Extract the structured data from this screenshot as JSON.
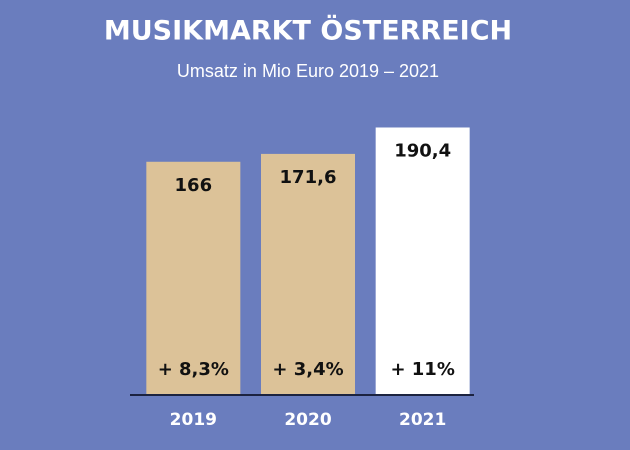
{
  "chart_data": {
    "type": "bar",
    "title": "MUSIKMARKT ÖSTERREICH",
    "subtitle": "Umsatz in Mio Euro 2019 – 2021",
    "categories": [
      "2019",
      "2020",
      "2021"
    ],
    "values": [
      166,
      171.6,
      190.4
    ],
    "value_labels": [
      "166",
      "171,6",
      "190,4"
    ],
    "annotations": [
      "+ 8,3%",
      "+ 3,4%",
      "+ 11%"
    ],
    "colors": [
      "#dcc298",
      "#dcc298",
      "#ffffff"
    ],
    "ylim": [
      0,
      200
    ]
  }
}
